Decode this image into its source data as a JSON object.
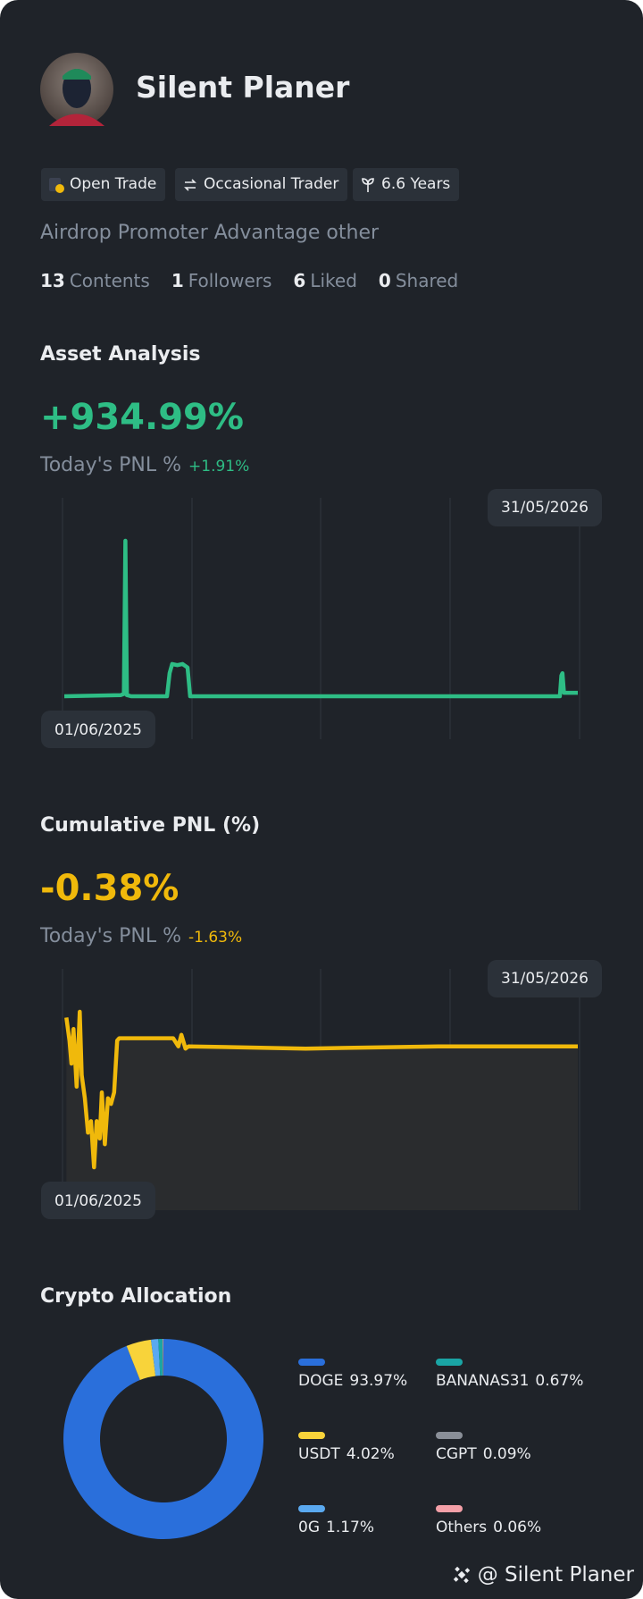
{
  "profile": {
    "name": "Silent Planer",
    "badges": [
      "Open Trade",
      "Occasional Trader",
      "6.6 Years"
    ],
    "bio": "Airdrop Promoter Advantage other",
    "stats": [
      {
        "count": 13,
        "label": "Contents"
      },
      {
        "count": 1,
        "label": "Followers"
      },
      {
        "count": 6,
        "label": "Liked"
      },
      {
        "count": 0,
        "label": "Shared"
      }
    ]
  },
  "chart_data": [
    {
      "type": "line",
      "title": "Asset Analysis",
      "headline": "+934.99%",
      "subtitle": "Today's PNL %",
      "change": "+1.91%",
      "x_start": "01/06/2025",
      "x_end": "31/05/2026",
      "color": "#2ebd85",
      "area": false,
      "x": [
        0,
        11,
        11.6,
        11.9,
        12.2,
        13,
        20,
        20.5,
        21,
        22,
        23,
        24,
        24.5,
        25,
        40,
        60,
        80,
        96.5,
        96.8,
        97,
        97.3,
        100
      ],
      "values": [
        0,
        1,
        2,
        135,
        1,
        0,
        0,
        20,
        28,
        27,
        28,
        25,
        0,
        0,
        0,
        0,
        0,
        0,
        18,
        20,
        3,
        3
      ]
    },
    {
      "type": "line",
      "title": "Cumulative PNL (%)",
      "headline": "-0.38%",
      "subtitle": "Today's PNL %",
      "change": "-1.63%",
      "x_start": "01/06/2025",
      "x_end": "31/05/2026",
      "color": "#f0b90b",
      "area": true,
      "x": [
        0.4,
        1.0,
        1.4,
        1.8,
        2.4,
        3.0,
        3.4,
        4.0,
        4.6,
        5.2,
        5.8,
        6.3,
        6.9,
        7.3,
        7.9,
        8.5,
        9.1,
        9.7,
        10.3,
        10.7,
        21.2,
        22.2,
        22.8,
        23.6,
        24.2,
        47,
        72.8,
        100
      ],
      "values": [
        27,
        7,
        -13,
        17,
        -33,
        32,
        -23,
        -43,
        -73,
        -63,
        -103,
        -63,
        -78,
        -38,
        -83,
        -43,
        -48,
        -38,
        7,
        9,
        9,
        2,
        12,
        0,
        2,
        0,
        2,
        2
      ]
    },
    {
      "type": "pie",
      "title": "Crypto Allocation",
      "categories": [
        "DOGE",
        "USDT",
        "0G",
        "BANANAS31",
        "CGPT",
        "Others"
      ],
      "values": [
        93.97,
        4.02,
        1.17,
        0.67,
        0.09,
        0.06
      ],
      "value_labels": [
        "93.97%",
        "4.02%",
        "1.17%",
        "0.67%",
        "0.09%",
        "0.06%"
      ],
      "colors": [
        "#2a6fdb",
        "#f8d33a",
        "#5aa9f0",
        "#1aa5a5",
        "#8a8f98",
        "#f4a0a8"
      ]
    }
  ],
  "footer": "@ Silent Planer"
}
